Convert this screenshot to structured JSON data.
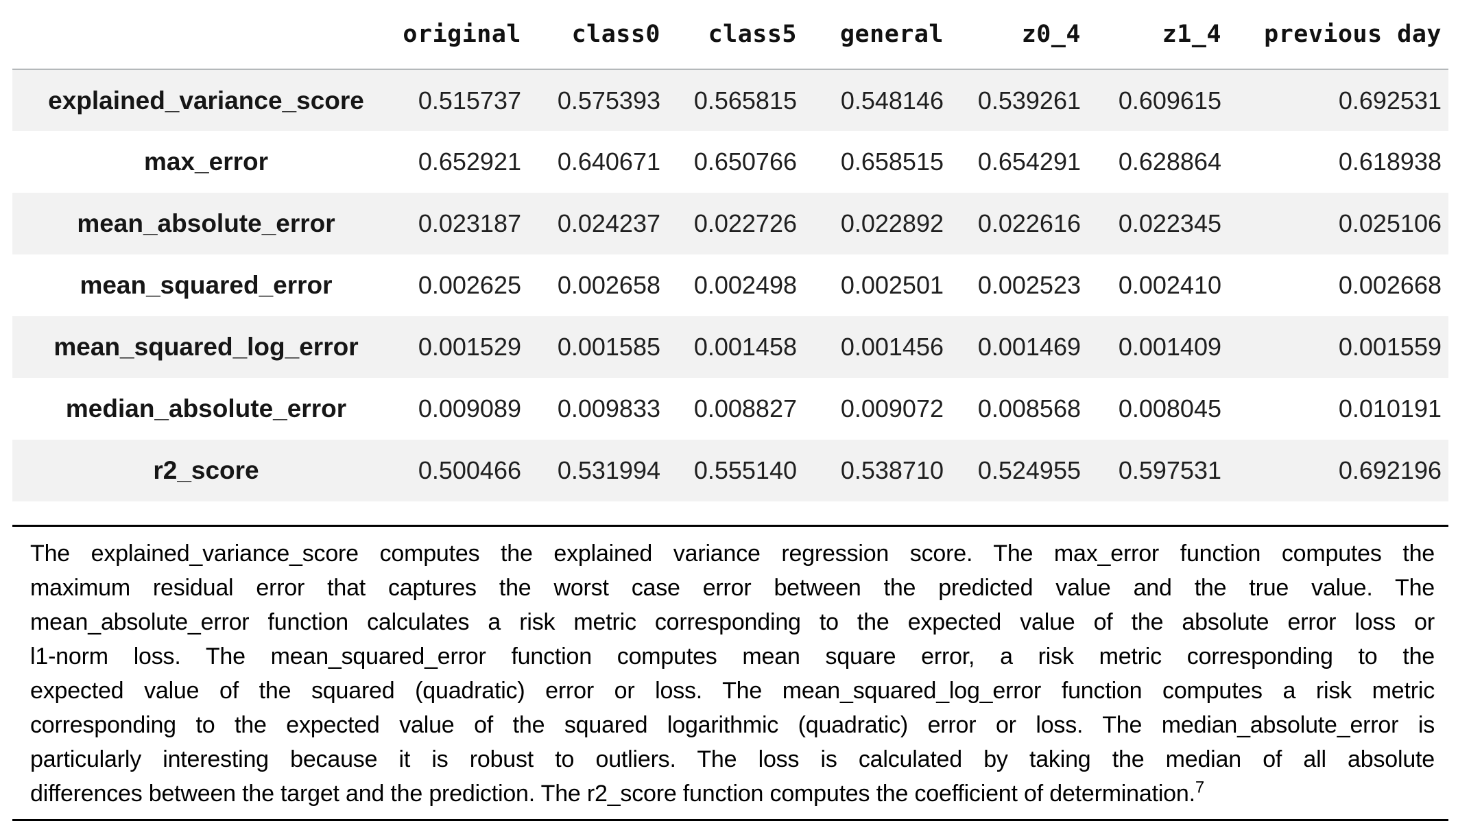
{
  "colors": {
    "row_stripe": "#f2f2f2",
    "header_divider": "#b4b8ba",
    "rule": "#000000"
  },
  "table": {
    "index_header": "",
    "columns": [
      "original",
      "class0",
      "class5",
      "general",
      "z0_4",
      "z1_4",
      "previous day"
    ],
    "rows": [
      {
        "label": "explained_variance_score",
        "values": [
          "0.515737",
          "0.575393",
          "0.565815",
          "0.548146",
          "0.539261",
          "0.609615",
          "0.692531"
        ]
      },
      {
        "label": "max_error",
        "values": [
          "0.652921",
          "0.640671",
          "0.650766",
          "0.658515",
          "0.654291",
          "0.628864",
          "0.618938"
        ]
      },
      {
        "label": "mean_absolute_error",
        "values": [
          "0.023187",
          "0.024237",
          "0.022726",
          "0.022892",
          "0.022616",
          "0.022345",
          "0.025106"
        ]
      },
      {
        "label": "mean_squared_error",
        "values": [
          "0.002625",
          "0.002658",
          "0.002498",
          "0.002501",
          "0.002523",
          "0.002410",
          "0.002668"
        ]
      },
      {
        "label": "mean_squared_log_error",
        "values": [
          "0.001529",
          "0.001585",
          "0.001458",
          "0.001456",
          "0.001469",
          "0.001409",
          "0.001559"
        ]
      },
      {
        "label": "median_absolute_error",
        "values": [
          "0.009089",
          "0.009833",
          "0.008827",
          "0.009072",
          "0.008568",
          "0.008045",
          "0.010191"
        ]
      },
      {
        "label": "r2_score",
        "values": [
          "0.500466",
          "0.531994",
          "0.555140",
          "0.538710",
          "0.524955",
          "0.597531",
          "0.692196"
        ]
      }
    ]
  },
  "paragraph": {
    "lines": [
      "The explained_variance_score computes the explained variance regression score. The max_error function computes the",
      "maximum residual error that captures the worst case error between the predicted value and the true value. The",
      "mean_absolute_error function calculates a risk metric corresponding to the expected value of the absolute error loss or",
      "l1-norm loss. The mean_squared_error function computes mean square error, a risk metric corresponding to the",
      "expected value of the squared (quadratic) error or loss. The mean_squared_log_error function computes a risk metric",
      "corresponding to the expected value of the squared logarithmic (quadratic) error or loss. The median_absolute_error is",
      "particularly interesting because it is robust to outliers. The loss is calculated by taking the median of all absolute",
      "differences between the target and the prediction. The r2_score function computes the coefficient of determination."
    ],
    "footnote_marker": "7"
  }
}
